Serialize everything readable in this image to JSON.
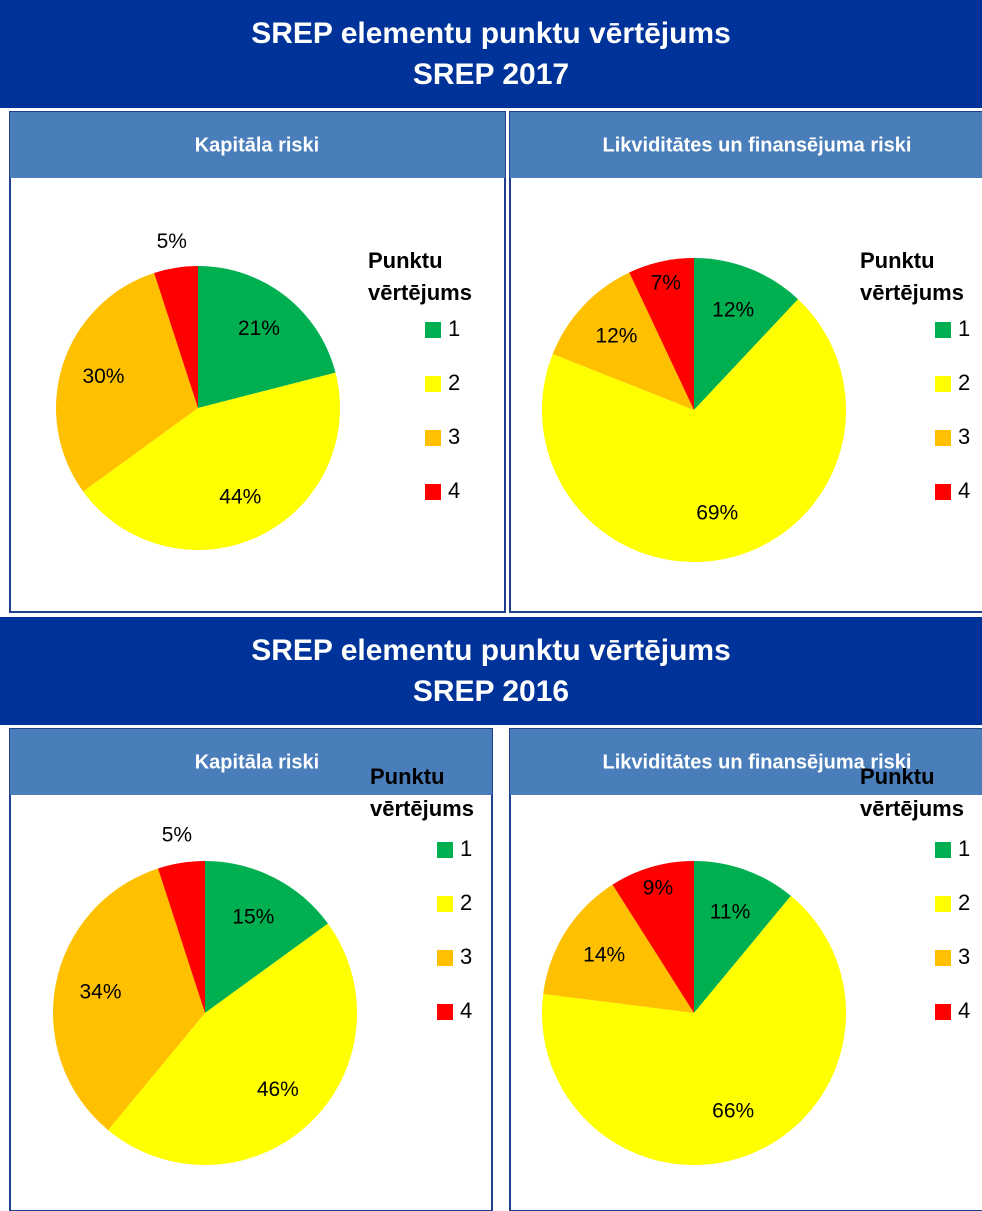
{
  "sections": [
    {
      "title": "SREP elementu punktu vērtējums",
      "subtitle": "SREP 2017"
    },
    {
      "title": "SREP elementu punktu vērtējums",
      "subtitle": "SREP 2016"
    }
  ],
  "chart_data": [
    {
      "type": "pie",
      "title": "Kapitāla riski",
      "legend_title": [
        "Punktu",
        "vērtējums"
      ],
      "categories": [
        "1",
        "2",
        "3",
        "4"
      ],
      "values": [
        21,
        44,
        30,
        5
      ],
      "value_labels": [
        "21%",
        "44%",
        "30%",
        "5%"
      ],
      "colors": [
        "#00b050",
        "#ffff00",
        "#ffc000",
        "#ff0000"
      ]
    },
    {
      "type": "pie",
      "title": "Likviditātes un finansējuma riski",
      "legend_title": [
        "Punktu",
        "vērtējums"
      ],
      "categories": [
        "1",
        "2",
        "3",
        "4"
      ],
      "values": [
        12,
        69,
        12,
        7
      ],
      "value_labels": [
        "12%",
        "69%",
        "12%",
        "7%"
      ],
      "colors": [
        "#00b050",
        "#ffff00",
        "#ffc000",
        "#ff0000"
      ]
    },
    {
      "type": "pie",
      "title": "Kapitāla riski",
      "legend_title": [
        "Punktu",
        "vērtējums"
      ],
      "categories": [
        "1",
        "2",
        "3",
        "4"
      ],
      "values": [
        15,
        46,
        34,
        5
      ],
      "value_labels": [
        "15%",
        "46%",
        "34%",
        "5%"
      ],
      "colors": [
        "#00b050",
        "#ffff00",
        "#ffc000",
        "#ff0000"
      ]
    },
    {
      "type": "pie",
      "title": "Likviditātes un finansējuma riski",
      "legend_title": [
        "Punktu",
        "vērtējums"
      ],
      "categories": [
        "1",
        "2",
        "3",
        "4"
      ],
      "values": [
        11,
        66,
        14,
        9
      ],
      "value_labels": [
        "11%",
        "66%",
        "14%",
        "9%"
      ],
      "colors": [
        "#00b050",
        "#ffff00",
        "#ffc000",
        "#ff0000"
      ]
    }
  ]
}
